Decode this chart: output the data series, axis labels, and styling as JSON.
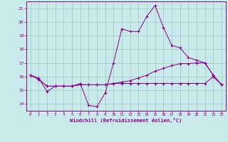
{
  "background_color": "#c8eaea",
  "grid_color": "#a0c8c8",
  "line_color": "#880088",
  "xlim": [
    -0.5,
    23.5
  ],
  "ylim": [
    13.5,
    21.5
  ],
  "xticks": [
    0,
    1,
    2,
    3,
    4,
    5,
    6,
    7,
    8,
    9,
    10,
    11,
    12,
    13,
    14,
    15,
    16,
    17,
    18,
    19,
    20,
    21,
    22,
    23
  ],
  "yticks": [
    14,
    15,
    16,
    17,
    18,
    19,
    20,
    21
  ],
  "xlabel": "Windchill (Refroidissement éolien,°C)",
  "series": [
    [
      16.1,
      15.9,
      14.9,
      15.3,
      15.3,
      15.3,
      15.5,
      13.9,
      13.8,
      14.8,
      17.0,
      19.5,
      19.3,
      19.3,
      20.4,
      21.2,
      19.6,
      18.3,
      18.1,
      17.4,
      17.2,
      17.0,
      16.1,
      15.4
    ],
    [
      16.1,
      15.8,
      15.3,
      15.3,
      15.3,
      15.3,
      15.4,
      15.4,
      15.4,
      15.4,
      15.5,
      15.6,
      15.7,
      15.9,
      16.1,
      16.4,
      16.6,
      16.8,
      16.95,
      16.95,
      17.0,
      17.0,
      16.1,
      15.4
    ],
    [
      16.1,
      15.8,
      15.3,
      15.3,
      15.3,
      15.3,
      15.4,
      15.4,
      15.4,
      15.4,
      15.5,
      15.5,
      15.5,
      15.5,
      15.5,
      15.5,
      15.5,
      15.5,
      15.5,
      15.5,
      15.5,
      15.5,
      16.0,
      15.4
    ]
  ]
}
